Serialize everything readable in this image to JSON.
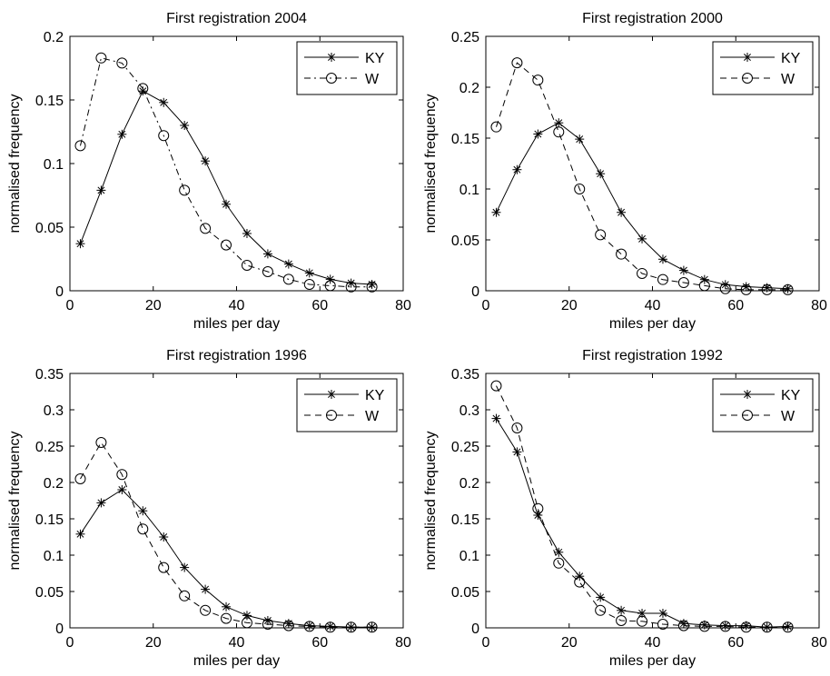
{
  "chart_data": [
    {
      "type": "line",
      "title": "First registration 2004",
      "xlabel": "miles per day",
      "ylabel": "normalised frequency",
      "xlim": [
        0,
        80
      ],
      "ylim": [
        0,
        0.2
      ],
      "xticks": [
        0,
        20,
        40,
        60,
        80
      ],
      "xtick_labels": [
        "0",
        "20",
        "40",
        "60",
        "80"
      ],
      "yticks": [
        0,
        0.05,
        0.1,
        0.15,
        0.2
      ],
      "ytick_labels": [
        "0",
        "0.05",
        "0.1",
        "0.15",
        "0.2"
      ],
      "grid": false,
      "legend": "top-right",
      "series": [
        {
          "name": "KY",
          "marker": "star",
          "linestyle": "solid",
          "x": [
            2.5,
            7.5,
            12.5,
            17.5,
            22.5,
            27.5,
            32.5,
            37.5,
            42.5,
            47.5,
            52.5,
            57.5,
            62.5,
            67.5,
            72.5
          ],
          "y": [
            0.037,
            0.079,
            0.123,
            0.157,
            0.148,
            0.13,
            0.102,
            0.068,
            0.045,
            0.029,
            0.021,
            0.014,
            0.009,
            0.006,
            0.005
          ]
        },
        {
          "name": "W",
          "marker": "circle",
          "linestyle": "dashdot",
          "x": [
            2.5,
            7.5,
            12.5,
            17.5,
            22.5,
            27.5,
            32.5,
            37.5,
            42.5,
            47.5,
            52.5,
            57.5,
            62.5,
            67.5,
            72.5
          ],
          "y": [
            0.114,
            0.183,
            0.179,
            0.159,
            0.122,
            0.079,
            0.049,
            0.036,
            0.02,
            0.015,
            0.009,
            0.005,
            0.004,
            0.003,
            0.003
          ]
        }
      ]
    },
    {
      "type": "line",
      "title": "First registration 2000",
      "xlabel": "miles per day",
      "ylabel": "normalised frequency",
      "xlim": [
        0,
        80
      ],
      "ylim": [
        0,
        0.25
      ],
      "xticks": [
        0,
        20,
        40,
        60,
        80
      ],
      "xtick_labels": [
        "0",
        "20",
        "40",
        "60",
        "80"
      ],
      "yticks": [
        0,
        0.05,
        0.1,
        0.15,
        0.2,
        0.25
      ],
      "ytick_labels": [
        "0",
        "0.05",
        "0.1",
        "0.15",
        "0.2",
        "0.25"
      ],
      "grid": false,
      "legend": "top-right",
      "series": [
        {
          "name": "KY",
          "marker": "star",
          "linestyle": "solid",
          "x": [
            2.5,
            7.5,
            12.5,
            17.5,
            22.5,
            27.5,
            32.5,
            37.5,
            42.5,
            47.5,
            52.5,
            57.5,
            62.5,
            67.5,
            72.5
          ],
          "y": [
            0.077,
            0.119,
            0.154,
            0.165,
            0.149,
            0.115,
            0.077,
            0.051,
            0.031,
            0.02,
            0.011,
            0.006,
            0.004,
            0.003,
            0.002
          ]
        },
        {
          "name": "W",
          "marker": "circle",
          "linestyle": "dashed",
          "x": [
            2.5,
            7.5,
            12.5,
            17.5,
            22.5,
            27.5,
            32.5,
            37.5,
            42.5,
            47.5,
            52.5,
            57.5,
            62.5,
            67.5,
            72.5
          ],
          "y": [
            0.161,
            0.224,
            0.207,
            0.156,
            0.1,
            0.055,
            0.036,
            0.017,
            0.011,
            0.008,
            0.005,
            0.002,
            0.001,
            0.001,
            0.001
          ]
        }
      ]
    },
    {
      "type": "line",
      "title": "First registration 1996",
      "xlabel": "miles per day",
      "ylabel": "normalised frequency",
      "xlim": [
        0,
        80
      ],
      "ylim": [
        0,
        0.35
      ],
      "xticks": [
        0,
        20,
        40,
        60,
        80
      ],
      "xtick_labels": [
        "0",
        "20",
        "40",
        "60",
        "80"
      ],
      "yticks": [
        0,
        0.05,
        0.1,
        0.15,
        0.2,
        0.25,
        0.3,
        0.35
      ],
      "ytick_labels": [
        "0",
        "0.05",
        "0.1",
        "0.15",
        "0.2",
        "0.25",
        "0.3",
        "0.35"
      ],
      "grid": false,
      "legend": "top-right",
      "series": [
        {
          "name": "KY",
          "marker": "star",
          "linestyle": "solid",
          "x": [
            2.5,
            7.5,
            12.5,
            17.5,
            22.5,
            27.5,
            32.5,
            37.5,
            42.5,
            47.5,
            52.5,
            57.5,
            62.5,
            67.5,
            72.5
          ],
          "y": [
            0.129,
            0.172,
            0.19,
            0.161,
            0.125,
            0.083,
            0.053,
            0.029,
            0.017,
            0.01,
            0.006,
            0.003,
            0.002,
            0.001,
            0.001
          ]
        },
        {
          "name": "W",
          "marker": "circle",
          "linestyle": "dashed",
          "x": [
            2.5,
            7.5,
            12.5,
            17.5,
            22.5,
            27.5,
            32.5,
            37.5,
            42.5,
            47.5,
            52.5,
            57.5,
            62.5,
            67.5,
            72.5
          ],
          "y": [
            0.205,
            0.255,
            0.211,
            0.136,
            0.083,
            0.044,
            0.024,
            0.013,
            0.007,
            0.005,
            0.003,
            0.002,
            0.001,
            0.001,
            0.001
          ]
        }
      ]
    },
    {
      "type": "line",
      "title": "First registration 1992",
      "xlabel": "miles per day",
      "ylabel": "normalised frequency",
      "xlim": [
        0,
        80
      ],
      "ylim": [
        0,
        0.35
      ],
      "xticks": [
        0,
        20,
        40,
        60,
        80
      ],
      "xtick_labels": [
        "0",
        "20",
        "40",
        "60",
        "80"
      ],
      "yticks": [
        0,
        0.05,
        0.1,
        0.15,
        0.2,
        0.25,
        0.3,
        0.35
      ],
      "ytick_labels": [
        "0",
        "0.05",
        "0.1",
        "0.15",
        "0.2",
        "0.25",
        "0.3",
        "0.35"
      ],
      "grid": false,
      "legend": "top-right",
      "series": [
        {
          "name": "KY",
          "marker": "star",
          "linestyle": "solid",
          "x": [
            2.5,
            7.5,
            12.5,
            17.5,
            22.5,
            27.5,
            32.5,
            37.5,
            42.5,
            47.5,
            52.5,
            57.5,
            62.5,
            67.5,
            72.5
          ],
          "y": [
            0.288,
            0.242,
            0.155,
            0.104,
            0.071,
            0.042,
            0.024,
            0.02,
            0.02,
            0.006,
            0.004,
            0.003,
            0.003,
            0.001,
            0.002
          ]
        },
        {
          "name": "W",
          "marker": "circle",
          "linestyle": "dashed",
          "x": [
            2.5,
            7.5,
            12.5,
            17.5,
            22.5,
            27.5,
            32.5,
            37.5,
            42.5,
            47.5,
            52.5,
            57.5,
            62.5,
            67.5,
            72.5
          ],
          "y": [
            0.333,
            0.275,
            0.164,
            0.089,
            0.063,
            0.024,
            0.01,
            0.009,
            0.005,
            0.003,
            0.002,
            0.002,
            0.001,
            0.001,
            0.001
          ]
        }
      ]
    }
  ]
}
